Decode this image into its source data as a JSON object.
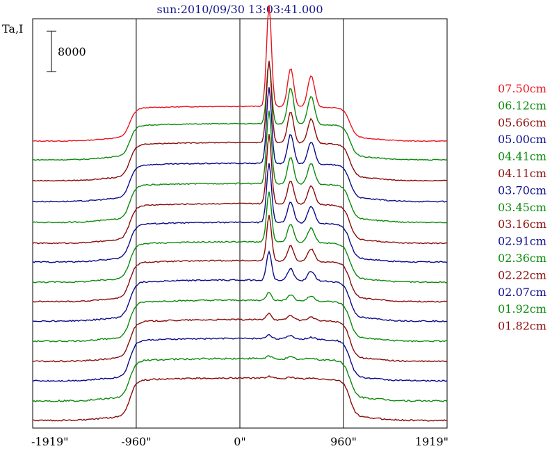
{
  "chart_data": {
    "type": "line",
    "title": "sun:2010/09/30 13:03:41.000",
    "ylabel": "Ta,I",
    "scale_bar_label": "8000",
    "xlim": [
      -1919,
      1919
    ],
    "x_tick_labels": [
      "-1919\"",
      "-960\"",
      "0\"",
      "960\"",
      "1919\""
    ],
    "x_ticks": [
      -1919,
      -960,
      0,
      960,
      1919
    ],
    "vertical_lines_at": [
      -960,
      0,
      960
    ],
    "grid": false,
    "legend_position": "right",
    "series": [
      {
        "name": "07.50cm",
        "color": "#e8141c",
        "baseline": 203,
        "disk": 45,
        "peak": 145,
        "peak2": 55,
        "peak3": 45,
        "noise": 0.6
      },
      {
        "name": "06.12cm",
        "color": "#0a8a0a",
        "baseline": 230,
        "disk": 47,
        "peak": 90,
        "peak2": 52,
        "peak3": 40,
        "noise": 0.7
      },
      {
        "name": "05.66cm",
        "color": "#8b0a0a",
        "baseline": 260,
        "disk": 50,
        "peak": 118,
        "peak2": 45,
        "peak3": 35,
        "noise": 0.7
      },
      {
        "name": "05.00cm",
        "color": "#0a0a8b",
        "baseline": 290,
        "disk": 50,
        "peak": 110,
        "peak2": 42,
        "peak3": 32,
        "noise": 0.8
      },
      {
        "name": "04.41cm",
        "color": "#0a8a0a",
        "baseline": 320,
        "disk": 51,
        "peak": 105,
        "peak2": 38,
        "peak3": 30,
        "noise": 0.8
      },
      {
        "name": "04.11cm",
        "color": "#8b0a0a",
        "baseline": 350,
        "disk": 52,
        "peak": 100,
        "peak2": 34,
        "peak3": 27,
        "noise": 0.8
      },
      {
        "name": "03.70cm",
        "color": "#0a0a8b",
        "baseline": 377,
        "disk": 52,
        "peak": 85,
        "peak2": 30,
        "peak3": 24,
        "noise": 0.9
      },
      {
        "name": "03.45cm",
        "color": "#0a8a0a",
        "baseline": 406,
        "disk": 53,
        "peak": 72,
        "peak2": 26,
        "peak3": 21,
        "noise": 0.9
      },
      {
        "name": "03.16cm",
        "color": "#8b0a0a",
        "baseline": 434,
        "disk": 54,
        "peak": 65,
        "peak2": 22,
        "peak3": 18,
        "noise": 0.9
      },
      {
        "name": "02.91cm",
        "color": "#0a0a8b",
        "baseline": 462,
        "disk": 54,
        "peak": 42,
        "peak2": 17,
        "peak3": 14,
        "noise": 1.0
      },
      {
        "name": "02.36cm",
        "color": "#0a8a0a",
        "baseline": 491,
        "disk": 54,
        "peak": 12,
        "peak2": 9,
        "peak3": 7,
        "noise": 1.0
      },
      {
        "name": "02.22cm",
        "color": "#8b0a0a",
        "baseline": 520,
        "disk": 55,
        "peak": 10,
        "peak2": 7,
        "peak3": 5,
        "noise": 1.0
      },
      {
        "name": "02.07cm",
        "color": "#0a0a8b",
        "baseline": 548,
        "disk": 56,
        "peak": 6,
        "peak2": 5,
        "peak3": 3,
        "noise": 1.0
      },
      {
        "name": "01.92cm",
        "color": "#0a8a0a",
        "baseline": 577,
        "disk": 56,
        "peak": 4,
        "peak2": 3,
        "peak3": 2,
        "noise": 1.2
      },
      {
        "name": "01.82cm",
        "color": "#8b0a0a",
        "baseline": 605,
        "disk": 56,
        "peak": 3,
        "peak2": 2,
        "peak3": 1,
        "noise": 1.0
      }
    ]
  }
}
